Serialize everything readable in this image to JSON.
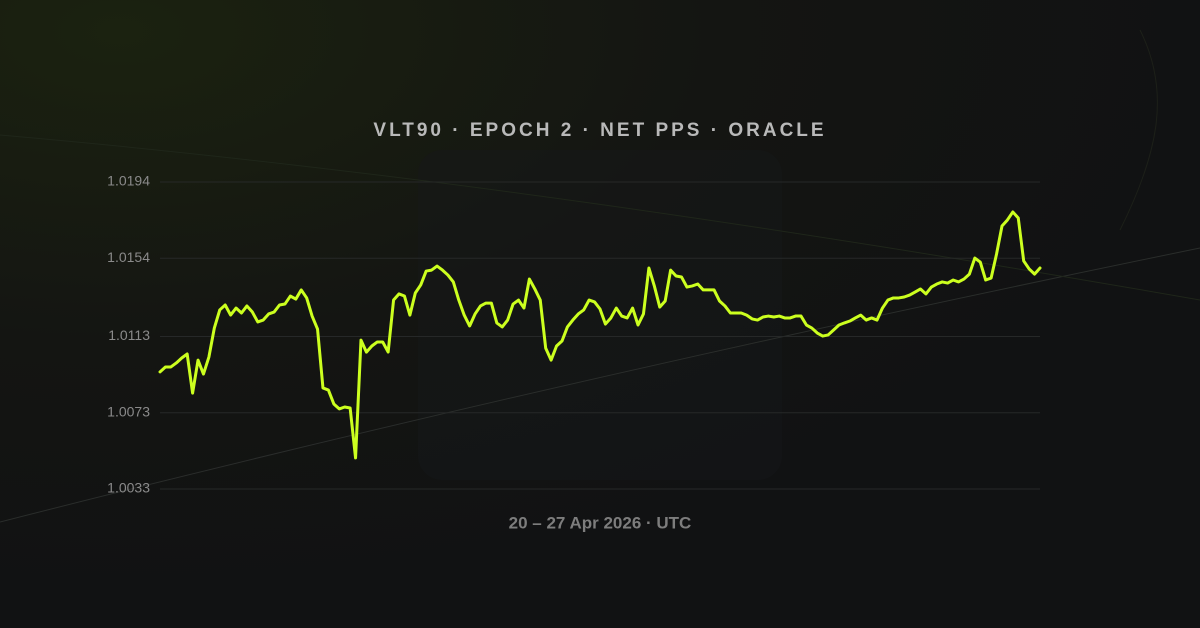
{
  "chart_data": {
    "type": "line",
    "title": "VLT90 · EPOCH 2 · NET PPS · ORACLE",
    "x_label": "20 – 27 Apr 2026 · UTC",
    "color": "#ccff1f",
    "ylim": [
      1.0033,
      1.0194
    ],
    "yticks": [
      1.0033,
      1.0073,
      1.0113,
      1.0154,
      1.0194
    ],
    "grid": true,
    "values": [
      1.00944,
      1.0097,
      1.0097,
      1.00991,
      1.01017,
      1.01038,
      1.00833,
      1.01006,
      1.00933,
      1.01022,
      1.01174,
      1.01269,
      1.01295,
      1.01242,
      1.01279,
      1.01253,
      1.0129,
      1.01258,
      1.01206,
      1.01216,
      1.01248,
      1.01258,
      1.01295,
      1.013,
      1.01342,
      1.01326,
      1.01374,
      1.01332,
      1.01237,
      1.01169,
      1.0086,
      1.00849,
      1.00776,
      1.0075,
      1.0076,
      1.00755,
      1.00493,
      1.01111,
      1.01048,
      1.0108,
      1.01101,
      1.01101,
      1.01048,
      1.01321,
      1.01353,
      1.01342,
      1.01242,
      1.01358,
      1.014,
      1.01473,
      1.01478,
      1.01499,
      1.01478,
      1.01452,
      1.01416,
      1.01321,
      1.01242,
      1.01185,
      1.01248,
      1.0129,
      1.01305,
      1.01305,
      1.01201,
      1.0118,
      1.01216,
      1.013,
      1.01321,
      1.01279,
      1.01431,
      1.01379,
      1.01321,
      1.01069,
      1.01006,
      1.0108,
      1.01106,
      1.0118,
      1.01216,
      1.01248,
      1.01269,
      1.01321,
      1.01311,
      1.01274,
      1.01195,
      1.01227,
      1.01279,
      1.01237,
      1.01227,
      1.01279,
      1.0119,
      1.01248,
      1.01489,
      1.01395,
      1.01284,
      1.01316,
      1.01478,
      1.01447,
      1.01442,
      1.01389,
      1.01395,
      1.01405,
      1.01374,
      1.01374,
      1.01374,
      1.01316,
      1.0129,
      1.01253,
      1.01253,
      1.01253,
      1.01242,
      1.01222,
      1.01216,
      1.01232,
      1.01237,
      1.01232,
      1.01237,
      1.01227,
      1.01227,
      1.01237,
      1.01237,
      1.0119,
      1.01174,
      1.01148,
      1.01132,
      1.01138,
      1.01164,
      1.0119,
      1.01201,
      1.01211,
      1.01227,
      1.01242,
      1.01216,
      1.01227,
      1.01216,
      1.01279,
      1.01321,
      1.01332,
      1.01332,
      1.01337,
      1.01347,
      1.01363,
      1.01379,
      1.01353,
      1.01389,
      1.01405,
      1.01416,
      1.0141,
      1.01426,
      1.01416,
      1.01431,
      1.01457,
      1.01541,
      1.0152,
      1.01426,
      1.01436,
      1.01562,
      1.01709,
      1.01741,
      1.01783,
      1.01751,
      1.01526,
      1.01484,
      1.01457,
      1.01489
    ]
  }
}
